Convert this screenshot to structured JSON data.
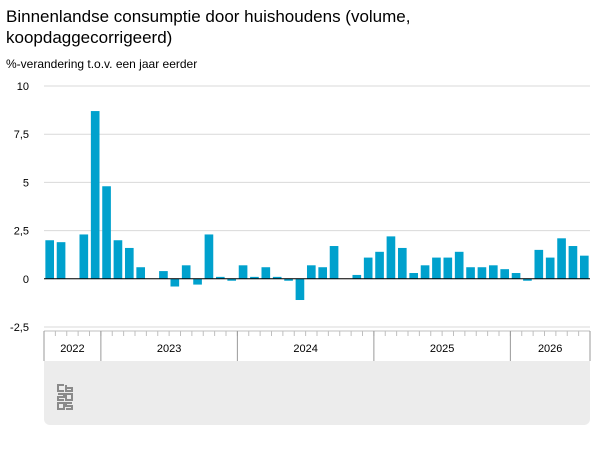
{
  "title": "Binnenlandse consumptie door huishoudens (volume, koopdaggecorrigeerd)",
  "chart_data": {
    "type": "bar",
    "title": "Binnenlandse consumptie door huishoudens (volume, koopdaggecorrigeerd)",
    "ylabel": "%-verandering t.o.v. een jaar eerder",
    "xlabel": "",
    "ylim": [
      -2.5,
      10
    ],
    "yticks": [
      -2.5,
      0,
      2.5,
      5,
      7.5,
      10
    ],
    "ytick_labels": [
      "-2,5",
      "0",
      "2,5",
      "5",
      "7,5",
      "10"
    ],
    "grid": "horizontal",
    "bar_color": "#00a1cd",
    "years": [
      {
        "label": "2022",
        "months": 5
      },
      {
        "label": "2023",
        "months": 12
      },
      {
        "label": "2024",
        "months": 12
      },
      {
        "label": "2025",
        "months": 12
      },
      {
        "label": "2026",
        "months": 7
      }
    ],
    "values": [
      2.0,
      1.9,
      null,
      2.3,
      8.7,
      4.8,
      2.0,
      1.6,
      0.6,
      null,
      0.4,
      -0.4,
      0.7,
      -0.3,
      2.3,
      0.1,
      -0.1,
      0.7,
      0.1,
      0.6,
      0.1,
      -0.1,
      -1.1,
      0.7,
      0.6,
      1.7,
      null,
      0.2,
      1.1,
      1.4,
      2.2,
      1.6,
      0.3,
      0.7,
      1.1,
      1.1,
      1.4,
      0.6,
      0.6,
      0.7,
      0.5,
      0.3,
      -0.1,
      1.5,
      1.1,
      2.1,
      1.7,
      1.2
    ]
  },
  "logo_name": "cbs-logo-icon"
}
